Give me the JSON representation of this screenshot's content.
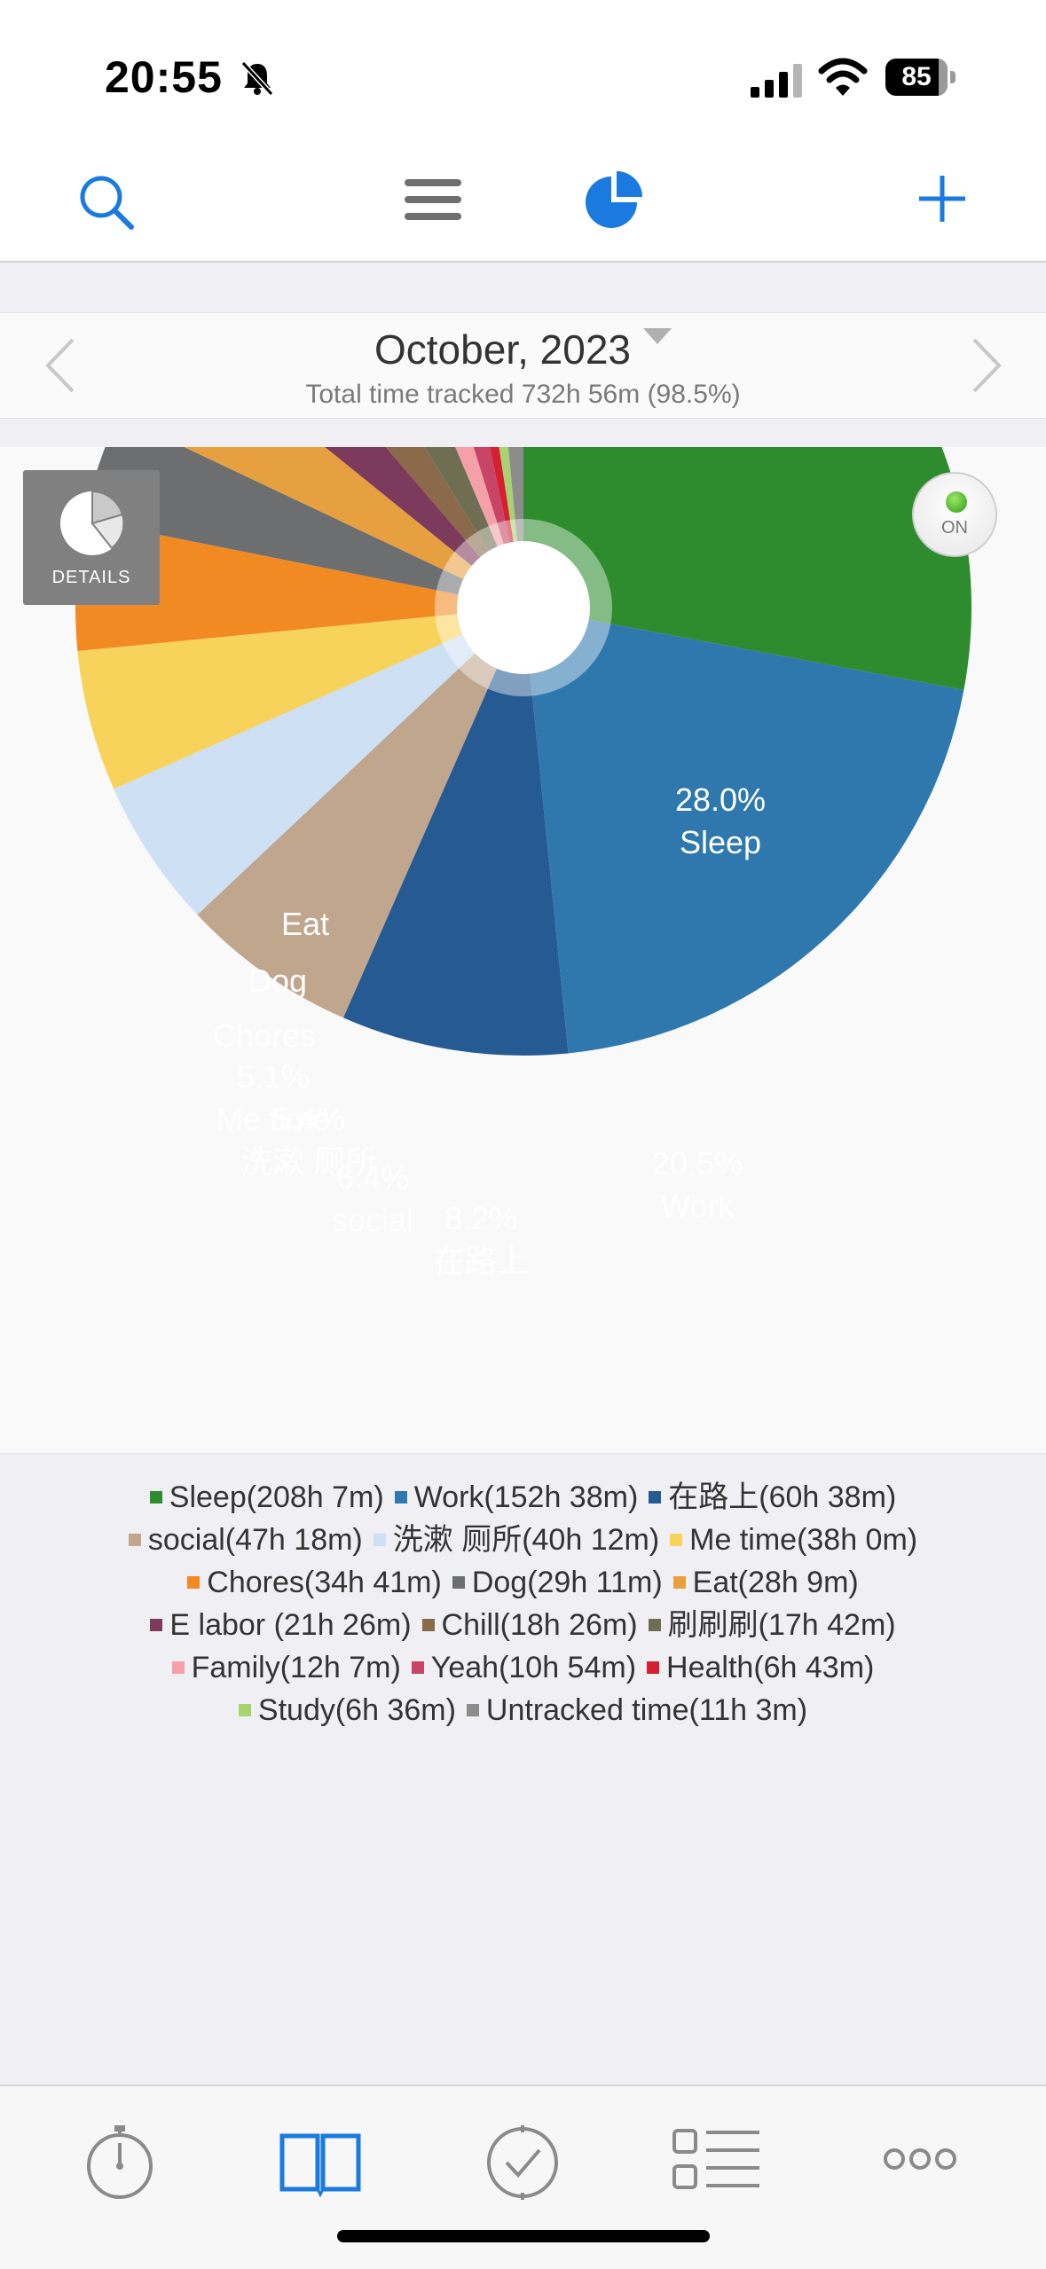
{
  "status_bar": {
    "time": "20:55",
    "battery": "85",
    "battery_level": 85
  },
  "toolbar": {
    "icons": [
      "search-icon",
      "menu-icon",
      "pie-chart-icon",
      "plus-icon"
    ],
    "accent_color": "#1a7ae0"
  },
  "period": {
    "title": "October, 2023",
    "total": "Total time tracked 732h 56m (98.5%)"
  },
  "controls": {
    "details_label": "DETAILS",
    "on_label": "ON"
  },
  "chart_data": {
    "type": "pie",
    "categories": [
      "Sleep",
      "Work",
      "在路上",
      "social",
      "洗漱 厕所",
      "Me time",
      "Chores",
      "Dog",
      "Eat",
      "E labor",
      "Chill",
      "刷刷刷",
      "Family",
      "Yeah",
      "Health",
      "Study",
      "Untracked time"
    ],
    "values": [
      28.0,
      20.5,
      8.2,
      6.4,
      5.4,
      5.1,
      4.7,
      3.9,
      3.8,
      2.9,
      2.5,
      2.4,
      1.6,
      1.5,
      0.9,
      0.9,
      1.5
    ],
    "colors": [
      "#2e8b2e",
      "#2f78ae",
      "#265a92",
      "#bfa68d",
      "#cde0f4",
      "#f8d35c",
      "#f28a24",
      "#6d6e70",
      "#e6a040",
      "#7c3a5c",
      "#8a6a4a",
      "#6e6e52",
      "#f4a0a8",
      "#c84466",
      "#d42030",
      "#a8d470",
      "#8c8c8c"
    ],
    "labels": [
      {
        "text": "28.0%",
        "slice": 0
      },
      {
        "text": "Sleep",
        "slice": 0
      },
      {
        "text": "20.5%",
        "slice": 1
      },
      {
        "text": "Work",
        "slice": 1
      },
      {
        "text": "8.2%",
        "slice": 2
      },
      {
        "text": "在路上",
        "slice": 2
      },
      {
        "text": "6.4%",
        "slice": 3
      },
      {
        "text": "social",
        "slice": 3
      },
      {
        "text": "5.4%",
        "slice": 4
      },
      {
        "text": "洗漱 厕所",
        "slice": 4
      },
      {
        "text": "5.1%",
        "slice": 5
      },
      {
        "text": "Me time",
        "slice": 5
      },
      {
        "text": "Chores",
        "slice": 6
      },
      {
        "text": "Dog",
        "slice": 7
      },
      {
        "text": "Eat",
        "slice": 8
      }
    ],
    "legend": [
      [
        "Sleep(208h 7m)",
        "Work(152h 38m)",
        "在路上(60h 38m)"
      ],
      [
        "social(47h 18m)",
        "洗漱 厕所(40h 12m)",
        "Me time(38h 0m)"
      ],
      [
        "Chores(34h 41m)",
        "Dog(29h 11m)",
        "Eat(28h 9m)"
      ],
      [
        "E labor (21h 26m)",
        "Chill(18h 26m)",
        "刷刷刷(17h 42m)"
      ],
      [
        "Family(12h 7m)",
        "Yeah(10h 54m)",
        "Health(6h 43m)"
      ],
      [
        "Study(6h 36m)",
        "Untracked time(11h 3m)"
      ]
    ]
  },
  "tabbar": {
    "icons": [
      "stopwatch-icon",
      "book-icon",
      "goals-icon",
      "list-icon",
      "more-icon"
    ],
    "active": 1
  }
}
